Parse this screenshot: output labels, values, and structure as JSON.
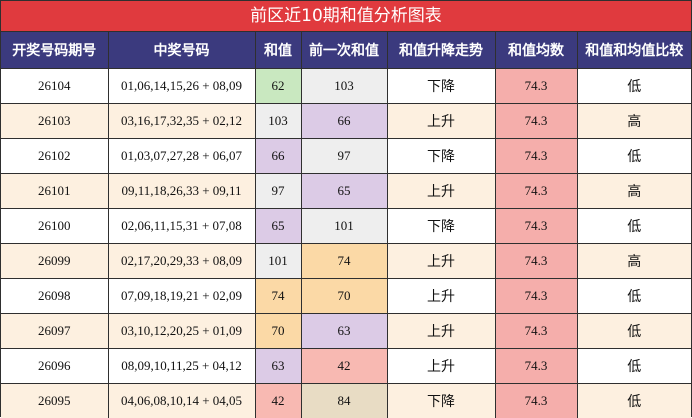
{
  "title": "前区近10期和值分析图表",
  "columns": [
    "开奖号码期号",
    "中奖号码",
    "和值",
    "前一次和值",
    "和值升降走势",
    "和值均数",
    "和值和均值比较"
  ],
  "colors": {
    "title_bg": "#e03a3e",
    "header_bg": "#3b3a7e",
    "row_odd_bg": "#fdf0e0",
    "average_bg": "#f5aeab"
  },
  "rows": [
    {
      "period": "26104",
      "numbers": "01,06,14,15,26 + 08,09",
      "sum": "62",
      "sum_bg": "#c9e8c0",
      "prev_sum": "103",
      "prev_bg": "#eeeeee",
      "trend": "下降",
      "average": "74.3",
      "compare": "低"
    },
    {
      "period": "26103",
      "numbers": "03,16,17,32,35 + 02,12",
      "sum": "103",
      "sum_bg": "#eeeeee",
      "prev_sum": "66",
      "prev_bg": "#dccbe6",
      "trend": "上升",
      "average": "74.3",
      "compare": "高"
    },
    {
      "period": "26102",
      "numbers": "01,03,07,27,28 + 06,07",
      "sum": "66",
      "sum_bg": "#dccbe6",
      "prev_sum": "97",
      "prev_bg": "#eeeeee",
      "trend": "下降",
      "average": "74.3",
      "compare": "低"
    },
    {
      "period": "26101",
      "numbers": "09,11,18,26,33 + 09,11",
      "sum": "97",
      "sum_bg": "#eeeeee",
      "prev_sum": "65",
      "prev_bg": "#dccbe6",
      "trend": "上升",
      "average": "74.3",
      "compare": "高"
    },
    {
      "period": "26100",
      "numbers": "02,06,11,15,31 + 07,08",
      "sum": "65",
      "sum_bg": "#dccbe6",
      "prev_sum": "101",
      "prev_bg": "#eeeeee",
      "trend": "下降",
      "average": "74.3",
      "compare": "低"
    },
    {
      "period": "26099",
      "numbers": "02,17,20,29,33 + 08,09",
      "sum": "101",
      "sum_bg": "#eeeeee",
      "prev_sum": "74",
      "prev_bg": "#fbd9a6",
      "trend": "上升",
      "average": "74.3",
      "compare": "高"
    },
    {
      "period": "26098",
      "numbers": "07,09,18,19,21 + 02,09",
      "sum": "74",
      "sum_bg": "#fbd9a6",
      "prev_sum": "70",
      "prev_bg": "#fbd9a6",
      "trend": "上升",
      "average": "74.3",
      "compare": "低"
    },
    {
      "period": "26097",
      "numbers": "03,10,12,20,25 + 01,09",
      "sum": "70",
      "sum_bg": "#fbd9a6",
      "prev_sum": "63",
      "prev_bg": "#dccbe6",
      "trend": "上升",
      "average": "74.3",
      "compare": "低"
    },
    {
      "period": "26096",
      "numbers": "08,09,10,11,25 + 04,12",
      "sum": "63",
      "sum_bg": "#dccbe6",
      "prev_sum": "42",
      "prev_bg": "#f8b9b2",
      "trend": "上升",
      "average": "74.3",
      "compare": "低"
    },
    {
      "period": "26095",
      "numbers": "04,06,08,10,14 + 04,05",
      "sum": "42",
      "sum_bg": "#f8b9b2",
      "prev_sum": "84",
      "prev_bg": "#e8dcc4",
      "trend": "下降",
      "average": "74.3",
      "compare": "低"
    }
  ]
}
